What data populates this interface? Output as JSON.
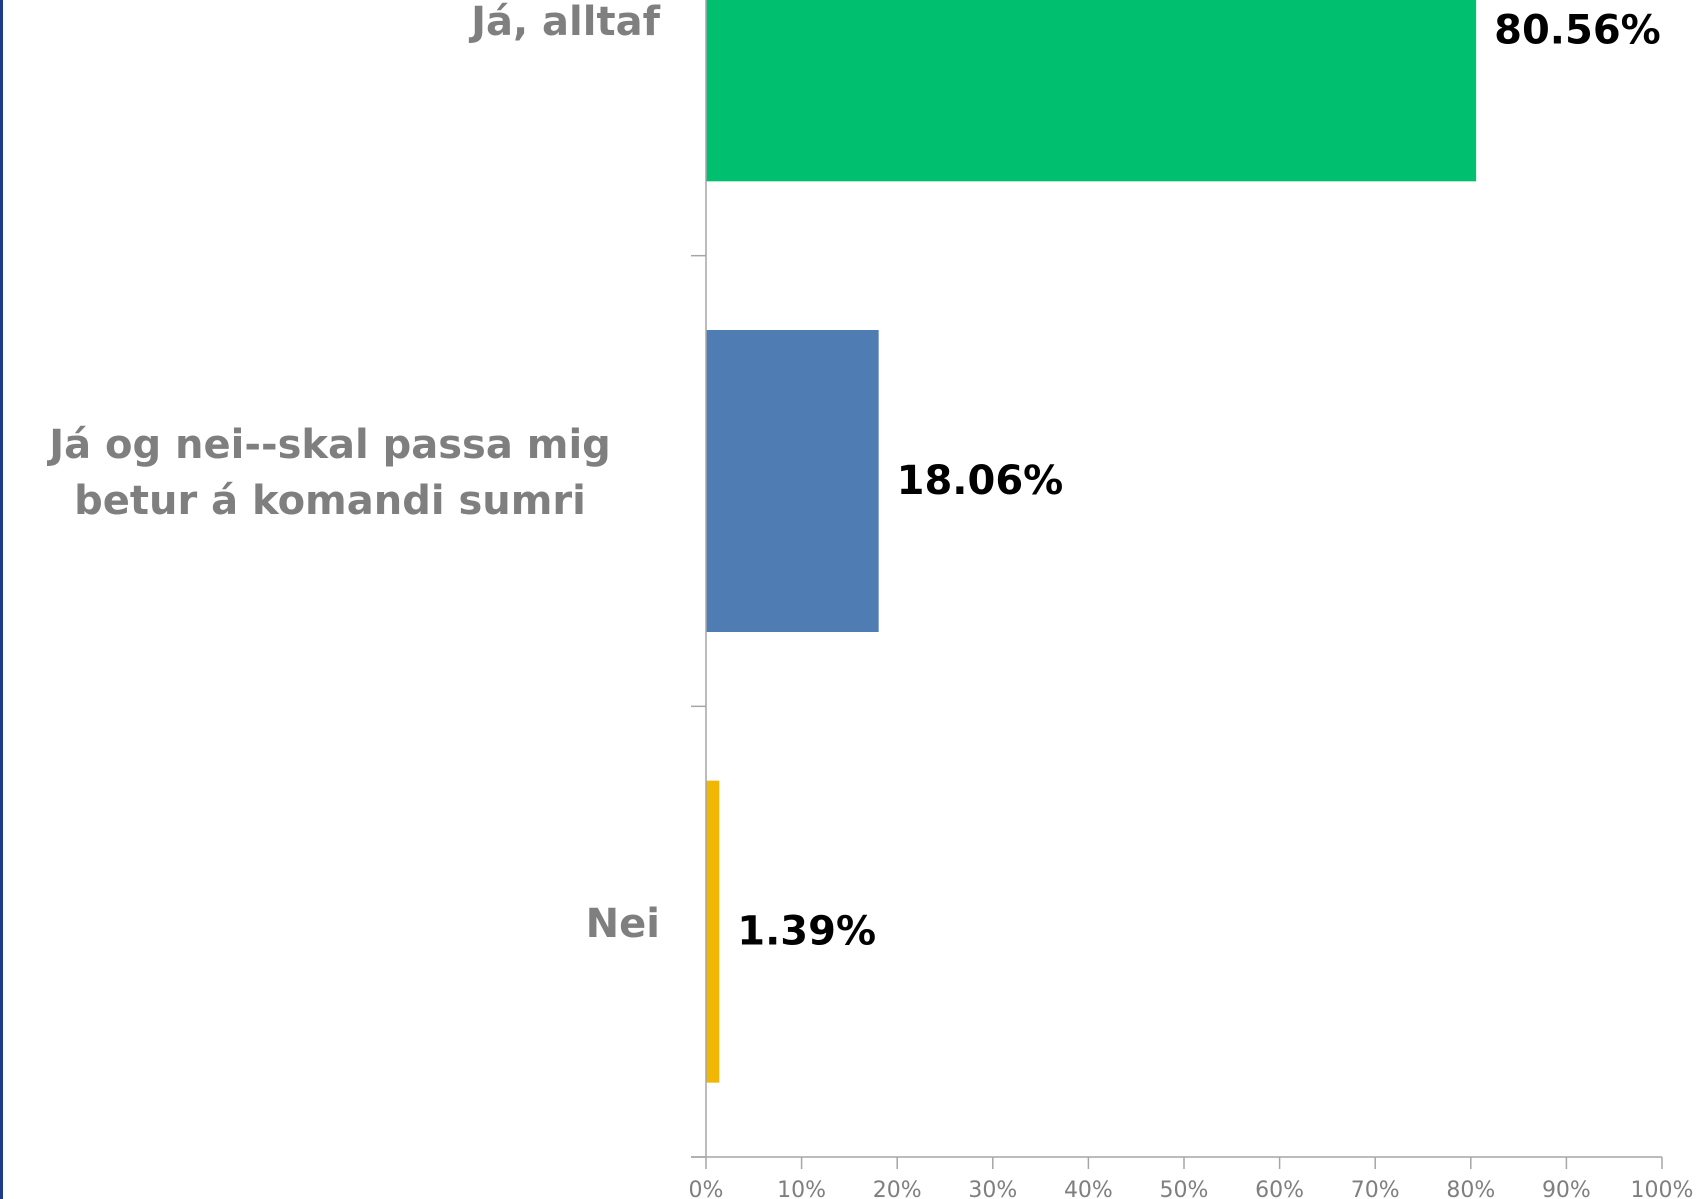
{
  "chart_data": {
    "type": "bar",
    "orientation": "horizontal",
    "categories": [
      "Já, alltaf",
      "Já og nei--skal passa mig betur á komandi sumri",
      "Nei"
    ],
    "values": [
      80.56,
      18.06,
      1.39
    ],
    "value_labels": [
      "80.56%",
      "18.06%",
      "1.39%"
    ],
    "bar_colors": [
      "#00bf6f",
      "#507cb4",
      "#f2b705"
    ],
    "xlim": [
      0,
      100
    ],
    "xticks": [
      0,
      10,
      20,
      30,
      40,
      50,
      60,
      70,
      80,
      90,
      100
    ],
    "xtick_labels": [
      "0%",
      "10%",
      "20%",
      "30%",
      "40%",
      "50%",
      "60%",
      "70%",
      "80%",
      "90%",
      "100%"
    ],
    "grid": false,
    "legend": "none"
  },
  "colors": {
    "category_label": "#7f7f7f",
    "value_label": "#000000",
    "axis": "#a6a6a6",
    "tick_label": "#7f7f7f",
    "left_edge": "#1f3c88"
  }
}
